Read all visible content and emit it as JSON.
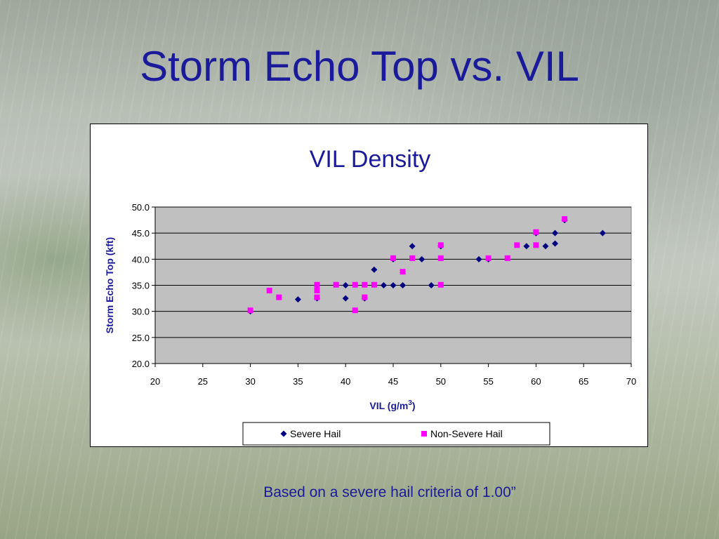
{
  "slide": {
    "title": "Storm Echo Top vs. VIL",
    "footnote": "Based on a severe hail criteria of 1.00”"
  },
  "colors": {
    "title_text": "#1a1a9a",
    "plot_background": "#c0c0c0",
    "severe_hail": "#000080",
    "non_severe_hail": "#ff00ff"
  },
  "chart_data": {
    "type": "scatter",
    "title": "VIL Density",
    "xlabel": "VIL (g/m",
    "xlabel_sup": "3",
    "xlabel_tail": ")",
    "ylabel": "Storm Echo Top (kft)",
    "xlim": [
      20,
      70
    ],
    "ylim": [
      20,
      50
    ],
    "xticks": [
      "20",
      "25",
      "30",
      "35",
      "40",
      "45",
      "50",
      "55",
      "60",
      "65",
      "70"
    ],
    "yticks": [
      "20.0",
      "25.0",
      "30.0",
      "35.0",
      "40.0",
      "45.0",
      "50.0"
    ],
    "grid": "horizontal",
    "legend_position": "bottom",
    "series": [
      {
        "name": "Severe Hail",
        "marker": "diamond",
        "points": [
          [
            30,
            30.0
          ],
          [
            35,
            32.3
          ],
          [
            37,
            32.5
          ],
          [
            37,
            35.0
          ],
          [
            40,
            32.5
          ],
          [
            40,
            35.0
          ],
          [
            42,
            32.5
          ],
          [
            43,
            38.0
          ],
          [
            44,
            35.0
          ],
          [
            45,
            35.0
          ],
          [
            45,
            40.0
          ],
          [
            46,
            35.0
          ],
          [
            47,
            42.5
          ],
          [
            48,
            40.0
          ],
          [
            49,
            35.0
          ],
          [
            50,
            42.5
          ],
          [
            54,
            40.0
          ],
          [
            55,
            40.0
          ],
          [
            59,
            42.5
          ],
          [
            60,
            45.0
          ],
          [
            61,
            42.5
          ],
          [
            62,
            45.0
          ],
          [
            62,
            43.0
          ],
          [
            63,
            47.5
          ],
          [
            67,
            45.0
          ]
        ]
      },
      {
        "name": "Non-Severe Hail",
        "marker": "square",
        "points": [
          [
            30,
            30.2
          ],
          [
            32,
            34.0
          ],
          [
            33,
            32.7
          ],
          [
            37,
            35.1
          ],
          [
            37,
            34.0
          ],
          [
            37,
            32.7
          ],
          [
            39,
            35.1
          ],
          [
            41,
            35.1
          ],
          [
            41,
            30.2
          ],
          [
            42,
            35.1
          ],
          [
            42,
            32.7
          ],
          [
            43,
            35.1
          ],
          [
            45,
            40.2
          ],
          [
            46,
            37.6
          ],
          [
            47,
            40.2
          ],
          [
            50,
            42.7
          ],
          [
            50,
            40.2
          ],
          [
            50,
            35.1
          ],
          [
            55,
            40.2
          ],
          [
            57,
            40.2
          ],
          [
            58,
            42.7
          ],
          [
            60,
            45.2
          ],
          [
            60,
            42.7
          ],
          [
            63,
            47.7
          ]
        ]
      }
    ]
  }
}
